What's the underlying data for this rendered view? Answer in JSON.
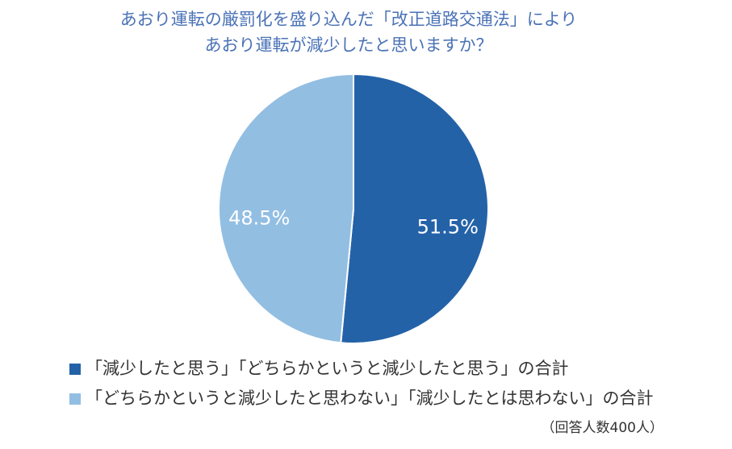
{
  "chart_data": {
    "type": "pie",
    "title": [
      "あおり運転の厳罰化を盛り込んだ「改正道路交通法」により",
      "あおり運転が減少したと思いますか？"
    ],
    "categories": [
      "「減少したと思う」「どちらかというと減少したと思う」の合計",
      "「どちらかというと減少したと思わない」「減少したとは思わない」の合計"
    ],
    "values": [
      51.5,
      48.5
    ],
    "value_labels": [
      "51.5%",
      "48.5%"
    ],
    "colors": [
      "#2462a8",
      "#92bee2"
    ],
    "note": "（回答人数400人）"
  }
}
